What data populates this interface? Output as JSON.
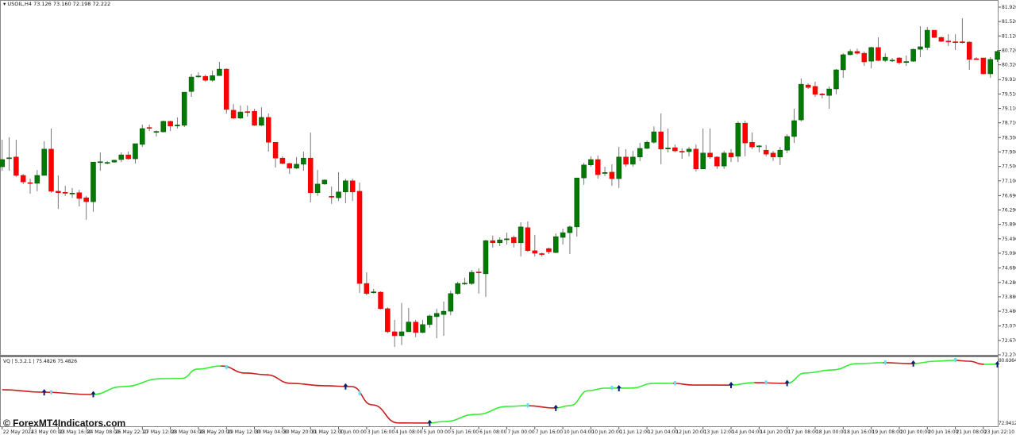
{
  "header": {
    "symbol": "USOIL,H4",
    "ohlc": "73.126 73.160 72.198 72.222"
  },
  "indicator": {
    "label": "VQ | 5.3.2.1 | 75.4826 75.4826",
    "axis_max": "80.6364",
    "axis_min": "72.9412"
  },
  "watermark": "© ForexMT4Indicators.com",
  "colors": {
    "bull": "#007a00",
    "bear": "#ff0000",
    "vq_up": "#33ee33",
    "vq_down": "#c81e1e",
    "marker_dark": "#0a1e6e",
    "marker_cyan": "#66e0f0"
  },
  "price_axis": [
    "81.920",
    "81.520",
    "81.120",
    "80.720",
    "80.320",
    "79.910",
    "79.510",
    "79.110",
    "78.710",
    "78.300",
    "77.900",
    "77.500",
    "77.100",
    "76.690",
    "76.290",
    "75.890",
    "75.490",
    "75.090",
    "74.680",
    "74.280",
    "73.880",
    "73.480",
    "73.070",
    "72.670",
    "72.270"
  ],
  "time_axis": [
    "22 May 2024",
    "23 May 00:00",
    "23 May 16:00",
    "24 May 08:00",
    "26 May 22:10",
    "27 May 12:00",
    "28 May 04:00",
    "28 May 20:00",
    "29 May 12:00",
    "30 May 04:00",
    "30 May 20:00",
    "31 May 12:00",
    "3 Jun 00:00",
    "3 Jun 16:00",
    "4 Jun 08:00",
    "5 Jun 00:00",
    "5 Jun 16:00",
    "6 Jun 08:00",
    "7 Jun 00:00",
    "7 Jun 16:00",
    "10 Jun 04:00",
    "10 Jun 20:00",
    "11 Jun 12:00",
    "12 Jun 04:00",
    "12 Jun 20:00",
    "13 Jun 12:00",
    "14 Jun 04:00",
    "14 Jun 20:00",
    "17 Jun 08:00",
    "18 Jun 00:00",
    "18 Jun 16:00",
    "19 Jun 08:00",
    "20 Jun 00:00",
    "20 Jun 16:00",
    "21 Jun 08:00",
    "23 Jun 22:10"
  ],
  "chart_data": {
    "type": "candlestick",
    "ylim": [
      72.27,
      81.92
    ],
    "ohlc": [
      [
        77.49,
        78.24,
        77.38,
        77.69
      ],
      [
        77.72,
        78.31,
        77.38,
        77.74
      ],
      [
        77.76,
        78.24,
        77.21,
        77.25
      ],
      [
        77.25,
        77.29,
        77.01,
        77.07
      ],
      [
        77.05,
        77.16,
        76.74,
        77.03
      ],
      [
        77.03,
        77.4,
        76.81,
        77.25
      ],
      [
        77.25,
        78.2,
        77.25,
        77.98
      ],
      [
        77.98,
        78.55,
        76.77,
        76.81
      ],
      [
        76.81,
        77.25,
        76.32,
        76.77
      ],
      [
        76.78,
        76.96,
        76.68,
        76.76
      ],
      [
        76.74,
        76.9,
        76.63,
        76.76
      ],
      [
        76.77,
        76.85,
        76.39,
        76.61
      ],
      [
        76.63,
        76.68,
        76.02,
        76.52
      ],
      [
        76.52,
        77.62,
        76.24,
        77.62
      ],
      [
        77.61,
        77.89,
        77.38,
        77.63
      ],
      [
        77.59,
        77.65,
        77.56,
        77.61
      ],
      [
        77.62,
        77.69,
        77.6,
        77.67
      ],
      [
        77.69,
        77.89,
        77.62,
        77.82
      ],
      [
        77.82,
        77.91,
        77.69,
        77.71
      ],
      [
        77.71,
        78.13,
        77.58,
        78.13
      ],
      [
        78.11,
        78.66,
        78.04,
        78.55
      ],
      [
        78.58,
        78.66,
        78.48,
        78.56
      ],
      [
        78.45,
        78.5,
        78.33,
        78.47
      ],
      [
        78.46,
        78.77,
        78.44,
        78.75
      ],
      [
        78.75,
        78.77,
        78.48,
        78.62
      ],
      [
        78.63,
        78.86,
        78.55,
        78.65
      ],
      [
        78.64,
        79.56,
        78.59,
        79.56
      ],
      [
        79.58,
        80.07,
        79.43,
        79.98
      ],
      [
        79.99,
        80.11,
        79.96,
        80.01
      ],
      [
        80.0,
        80.05,
        79.85,
        79.89
      ],
      [
        79.89,
        80.16,
        79.85,
        80.02
      ],
      [
        80.02,
        80.4,
        80.02,
        80.2
      ],
      [
        80.2,
        80.22,
        78.97,
        79.08
      ],
      [
        79.06,
        79.23,
        78.81,
        78.84
      ],
      [
        78.84,
        79.19,
        78.81,
        79.01
      ],
      [
        79.02,
        79.19,
        78.88,
        79.0
      ],
      [
        79.03,
        79.1,
        78.62,
        78.64
      ],
      [
        78.64,
        79.14,
        78.62,
        78.86
      ],
      [
        78.86,
        78.97,
        77.91,
        78.17
      ],
      [
        78.17,
        78.17,
        77.47,
        77.73
      ],
      [
        77.73,
        77.78,
        77.56,
        77.58
      ],
      [
        77.58,
        77.6,
        77.29,
        77.45
      ],
      [
        77.45,
        77.76,
        77.43,
        77.56
      ],
      [
        77.56,
        77.91,
        77.38,
        77.73
      ],
      [
        77.73,
        78.44,
        76.5,
        76.77
      ],
      [
        76.77,
        77.4,
        76.68,
        77.01
      ],
      [
        77.01,
        77.14,
        76.99,
        77.12
      ],
      [
        76.67,
        76.94,
        76.46,
        76.65
      ],
      [
        76.63,
        77.34,
        76.54,
        76.79
      ],
      [
        76.79,
        77.16,
        76.48,
        77.1
      ],
      [
        77.1,
        77.16,
        76.54,
        76.79
      ],
      [
        76.81,
        77.05,
        73.99,
        74.25
      ],
      [
        74.25,
        74.56,
        73.92,
        73.97
      ],
      [
        74.0,
        74.1,
        73.97,
        74.02
      ],
      [
        74.01,
        74.03,
        73.53,
        73.55
      ],
      [
        73.55,
        73.59,
        72.87,
        72.91
      ],
      [
        72.91,
        73.24,
        72.49,
        72.8
      ],
      [
        72.8,
        73.71,
        72.54,
        72.91
      ],
      [
        72.91,
        73.57,
        72.91,
        73.18
      ],
      [
        73.18,
        73.24,
        72.76,
        72.89
      ],
      [
        72.89,
        73.24,
        72.87,
        73.11
      ],
      [
        73.11,
        73.39,
        73.02,
        73.35
      ],
      [
        73.33,
        73.55,
        72.73,
        73.42
      ],
      [
        73.39,
        73.75,
        72.8,
        73.48
      ],
      [
        73.48,
        74.05,
        73.37,
        73.97
      ],
      [
        73.97,
        74.3,
        73.94,
        74.25
      ],
      [
        74.24,
        74.41,
        74.21,
        74.26
      ],
      [
        74.25,
        74.63,
        74.21,
        74.56
      ],
      [
        74.57,
        74.67,
        73.97,
        74.55
      ],
      [
        74.52,
        75.46,
        73.88,
        75.44
      ],
      [
        75.44,
        75.58,
        75.25,
        75.38
      ],
      [
        75.38,
        75.53,
        75.29,
        75.46
      ],
      [
        75.47,
        75.66,
        75.33,
        75.49
      ],
      [
        75.53,
        75.58,
        75.25,
        75.38
      ],
      [
        75.38,
        75.95,
        75.0,
        75.82
      ],
      [
        75.8,
        75.97,
        75.13,
        75.16
      ],
      [
        75.16,
        75.6,
        75.0,
        75.09
      ],
      [
        75.08,
        75.11,
        75.0,
        75.06
      ],
      [
        75.22,
        75.25,
        75.07,
        75.13
      ],
      [
        75.11,
        75.64,
        75.09,
        75.55
      ],
      [
        75.53,
        75.77,
        75.33,
        75.66
      ],
      [
        75.66,
        75.86,
        75.07,
        75.82
      ],
      [
        75.82,
        77.18,
        75.55,
        77.18
      ],
      [
        77.18,
        77.6,
        76.99,
        77.54
      ],
      [
        77.54,
        77.78,
        77.49,
        77.69
      ],
      [
        77.69,
        77.8,
        77.16,
        77.27
      ],
      [
        77.31,
        77.49,
        77.23,
        77.33
      ],
      [
        77.34,
        77.56,
        76.96,
        77.16
      ],
      [
        77.16,
        78.04,
        76.9,
        77.76
      ],
      [
        77.76,
        77.98,
        77.49,
        77.56
      ],
      [
        77.56,
        77.93,
        77.49,
        77.76
      ],
      [
        77.76,
        78.15,
        77.65,
        78.0
      ],
      [
        78.0,
        78.22,
        77.98,
        78.17
      ],
      [
        78.17,
        78.61,
        78.13,
        78.46
      ],
      [
        78.46,
        78.97,
        77.56,
        77.98
      ],
      [
        77.99,
        78.55,
        77.89,
        78.01
      ],
      [
        78.02,
        78.11,
        77.89,
        77.93
      ],
      [
        77.92,
        78.0,
        77.71,
        77.9
      ],
      [
        77.91,
        78.04,
        77.78,
        77.98
      ],
      [
        77.98,
        78.11,
        77.36,
        77.43
      ],
      [
        77.43,
        78.55,
        77.43,
        77.87
      ],
      [
        77.87,
        78.55,
        77.71,
        77.76
      ],
      [
        77.76,
        77.78,
        77.43,
        77.51
      ],
      [
        77.51,
        77.93,
        77.43,
        77.87
      ],
      [
        77.87,
        77.98,
        77.62,
        77.76
      ],
      [
        77.78,
        78.75,
        77.62,
        78.7
      ],
      [
        78.7,
        78.77,
        77.78,
        78.15
      ],
      [
        78.17,
        78.44,
        77.98,
        78.04
      ],
      [
        78.05,
        78.09,
        77.89,
        78.07
      ],
      [
        77.95,
        78.09,
        77.78,
        77.84
      ],
      [
        77.87,
        77.93,
        77.65,
        77.76
      ],
      [
        77.76,
        78.04,
        77.54,
        77.95
      ],
      [
        77.95,
        78.39,
        77.87,
        78.33
      ],
      [
        78.33,
        79.1,
        78.15,
        78.77
      ],
      [
        78.79,
        79.94,
        78.75,
        79.78
      ],
      [
        79.76,
        79.8,
        79.65,
        79.69
      ],
      [
        79.72,
        79.85,
        79.43,
        79.5
      ],
      [
        79.51,
        79.54,
        79.39,
        79.49
      ],
      [
        79.47,
        79.72,
        79.1,
        79.65
      ],
      [
        79.65,
        80.2,
        79.5,
        80.18
      ],
      [
        80.18,
        80.64,
        79.96,
        80.6
      ],
      [
        80.6,
        80.75,
        80.58,
        80.69
      ],
      [
        80.69,
        80.77,
        80.6,
        80.64
      ],
      [
        80.64,
        80.69,
        80.29,
        80.4
      ],
      [
        80.42,
        80.82,
        80.22,
        80.8
      ],
      [
        80.8,
        81.08,
        80.42,
        80.44
      ],
      [
        80.44,
        80.64,
        80.4,
        80.53
      ],
      [
        80.43,
        80.51,
        80.4,
        80.45
      ],
      [
        80.51,
        80.53,
        80.33,
        80.38
      ],
      [
        80.39,
        80.58,
        80.29,
        80.41
      ],
      [
        80.42,
        80.77,
        80.4,
        80.75
      ],
      [
        80.75,
        81.39,
        80.53,
        80.82
      ],
      [
        80.8,
        81.37,
        80.73,
        81.28
      ],
      [
        81.28,
        81.28,
        81.06,
        81.08
      ],
      [
        81.08,
        81.1,
        80.95,
        80.97
      ],
      [
        80.98,
        81.17,
        80.84,
        80.96
      ],
      [
        80.96,
        81.17,
        80.73,
        80.94
      ],
      [
        80.96,
        81.61,
        80.91,
        80.94
      ],
      [
        80.95,
        80.97,
        80.18,
        80.47
      ],
      [
        80.49,
        80.53,
        80.47,
        80.47
      ],
      [
        80.51,
        80.51,
        80.05,
        80.07
      ],
      [
        80.07,
        80.53,
        79.96,
        80.47
      ],
      [
        80.47,
        80.73,
        80.4,
        80.69
      ]
    ],
    "vq_line": {
      "ylim": [
        72.9412,
        80.6364
      ],
      "points": [
        [
          0,
          77.08
        ],
        [
          5.7,
          76.79
        ],
        [
          12.8,
          76.5
        ],
        [
          17.2,
          77.46
        ],
        [
          22.8,
          78.42
        ],
        [
          25.6,
          78.45
        ],
        [
          27.9,
          79.58
        ],
        [
          31.2,
          79.96
        ],
        [
          34.8,
          79.1
        ],
        [
          37.6,
          78.9
        ],
        [
          41.3,
          77.85
        ],
        [
          45.9,
          77.56
        ],
        [
          49.9,
          77.46
        ],
        [
          52.8,
          75.25
        ],
        [
          56.5,
          73.06
        ],
        [
          60.8,
          73.04
        ],
        [
          63.1,
          73.23
        ],
        [
          67.6,
          74.09
        ],
        [
          72.2,
          75.06
        ],
        [
          74.9,
          75.15
        ],
        [
          78.9,
          74.86
        ],
        [
          81,
          75.15
        ],
        [
          83.7,
          76.98
        ],
        [
          86,
          77.27
        ],
        [
          89.7,
          77.28
        ],
        [
          93,
          77.85
        ],
        [
          95.7,
          77.86
        ],
        [
          98.6,
          77.65
        ],
        [
          103.9,
          77.64
        ],
        [
          107.3,
          77.94
        ],
        [
          111.9,
          77.85
        ],
        [
          114.6,
          79.1
        ],
        [
          118.4,
          79.48
        ],
        [
          122.1,
          80.25
        ],
        [
          125.7,
          80.35
        ],
        [
          129.9,
          80.25
        ],
        [
          133.2,
          80.54
        ],
        [
          135.9,
          80.64
        ],
        [
          137.9,
          80.54
        ],
        [
          140.1,
          80.16
        ],
        [
          141.9,
          80.17
        ]
      ],
      "markers_dark": [
        6,
        13,
        49,
        61,
        79,
        88,
        104,
        112,
        130,
        142
      ],
      "markers_cyan": [
        7,
        32,
        51,
        75,
        87,
        96,
        109,
        126,
        136
      ]
    }
  }
}
